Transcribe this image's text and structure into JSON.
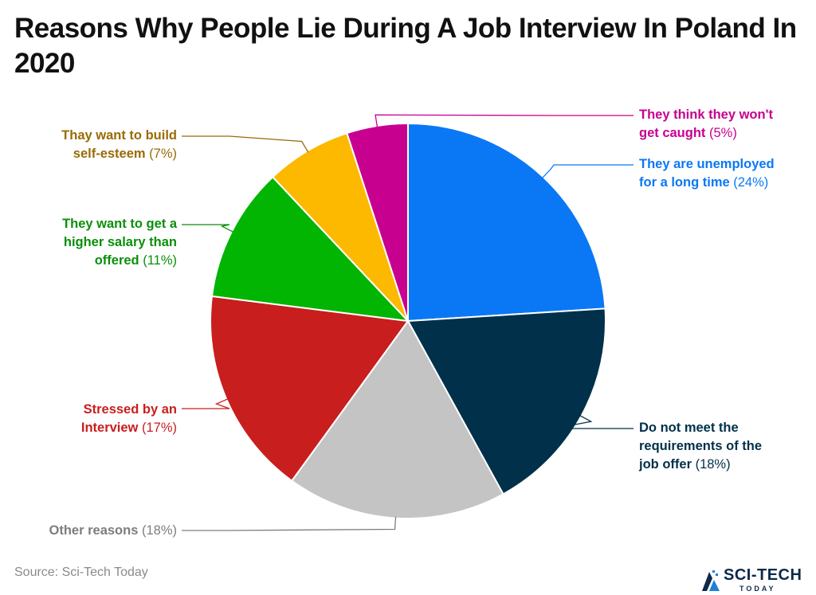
{
  "title": "Reasons Why People Lie During A Job Interview In Poland In 2020",
  "source": "Source: Sci-Tech Today",
  "logo": {
    "main": "SCI-TECH",
    "sub": "TODAY",
    "icon": "sci-tech-logo-icon"
  },
  "chart_data": {
    "type": "pie",
    "title": "Reasons Why People Lie During A Job Interview In Poland In 2020",
    "slices": [
      {
        "label": "They are unemployed for a long time",
        "pct_text": "(24%)",
        "value": 24,
        "color": "#0a78f5",
        "label_color": "#0a78f5"
      },
      {
        "label": "Do not meet the requirements of the job offer",
        "pct_text": "(18%)",
        "value": 18,
        "color": "#01304a",
        "label_color": "#01304a"
      },
      {
        "label": "Other reasons",
        "pct_text": "(18%)",
        "value": 18,
        "color": "#c4c4c4",
        "label_color": "#7d7d7d"
      },
      {
        "label": "Stressed by an Interview",
        "pct_text": "(17%)",
        "value": 17,
        "color": "#c81e1e",
        "label_color": "#c81e1e"
      },
      {
        "label": "They want to get a higher salary than offered",
        "pct_text": "(11%)",
        "value": 11,
        "color": "#02b502",
        "label_color": "#0a8f0a"
      },
      {
        "label": "Thay want to build self-esteem",
        "pct_text": "(7%)",
        "value": 7,
        "color": "#fcb900",
        "label_color": "#9a6a06"
      },
      {
        "label": "They think they won't get caught",
        "pct_text": "(5%)",
        "value": 5,
        "color": "#c8008f",
        "label_color": "#c8008f"
      }
    ]
  }
}
